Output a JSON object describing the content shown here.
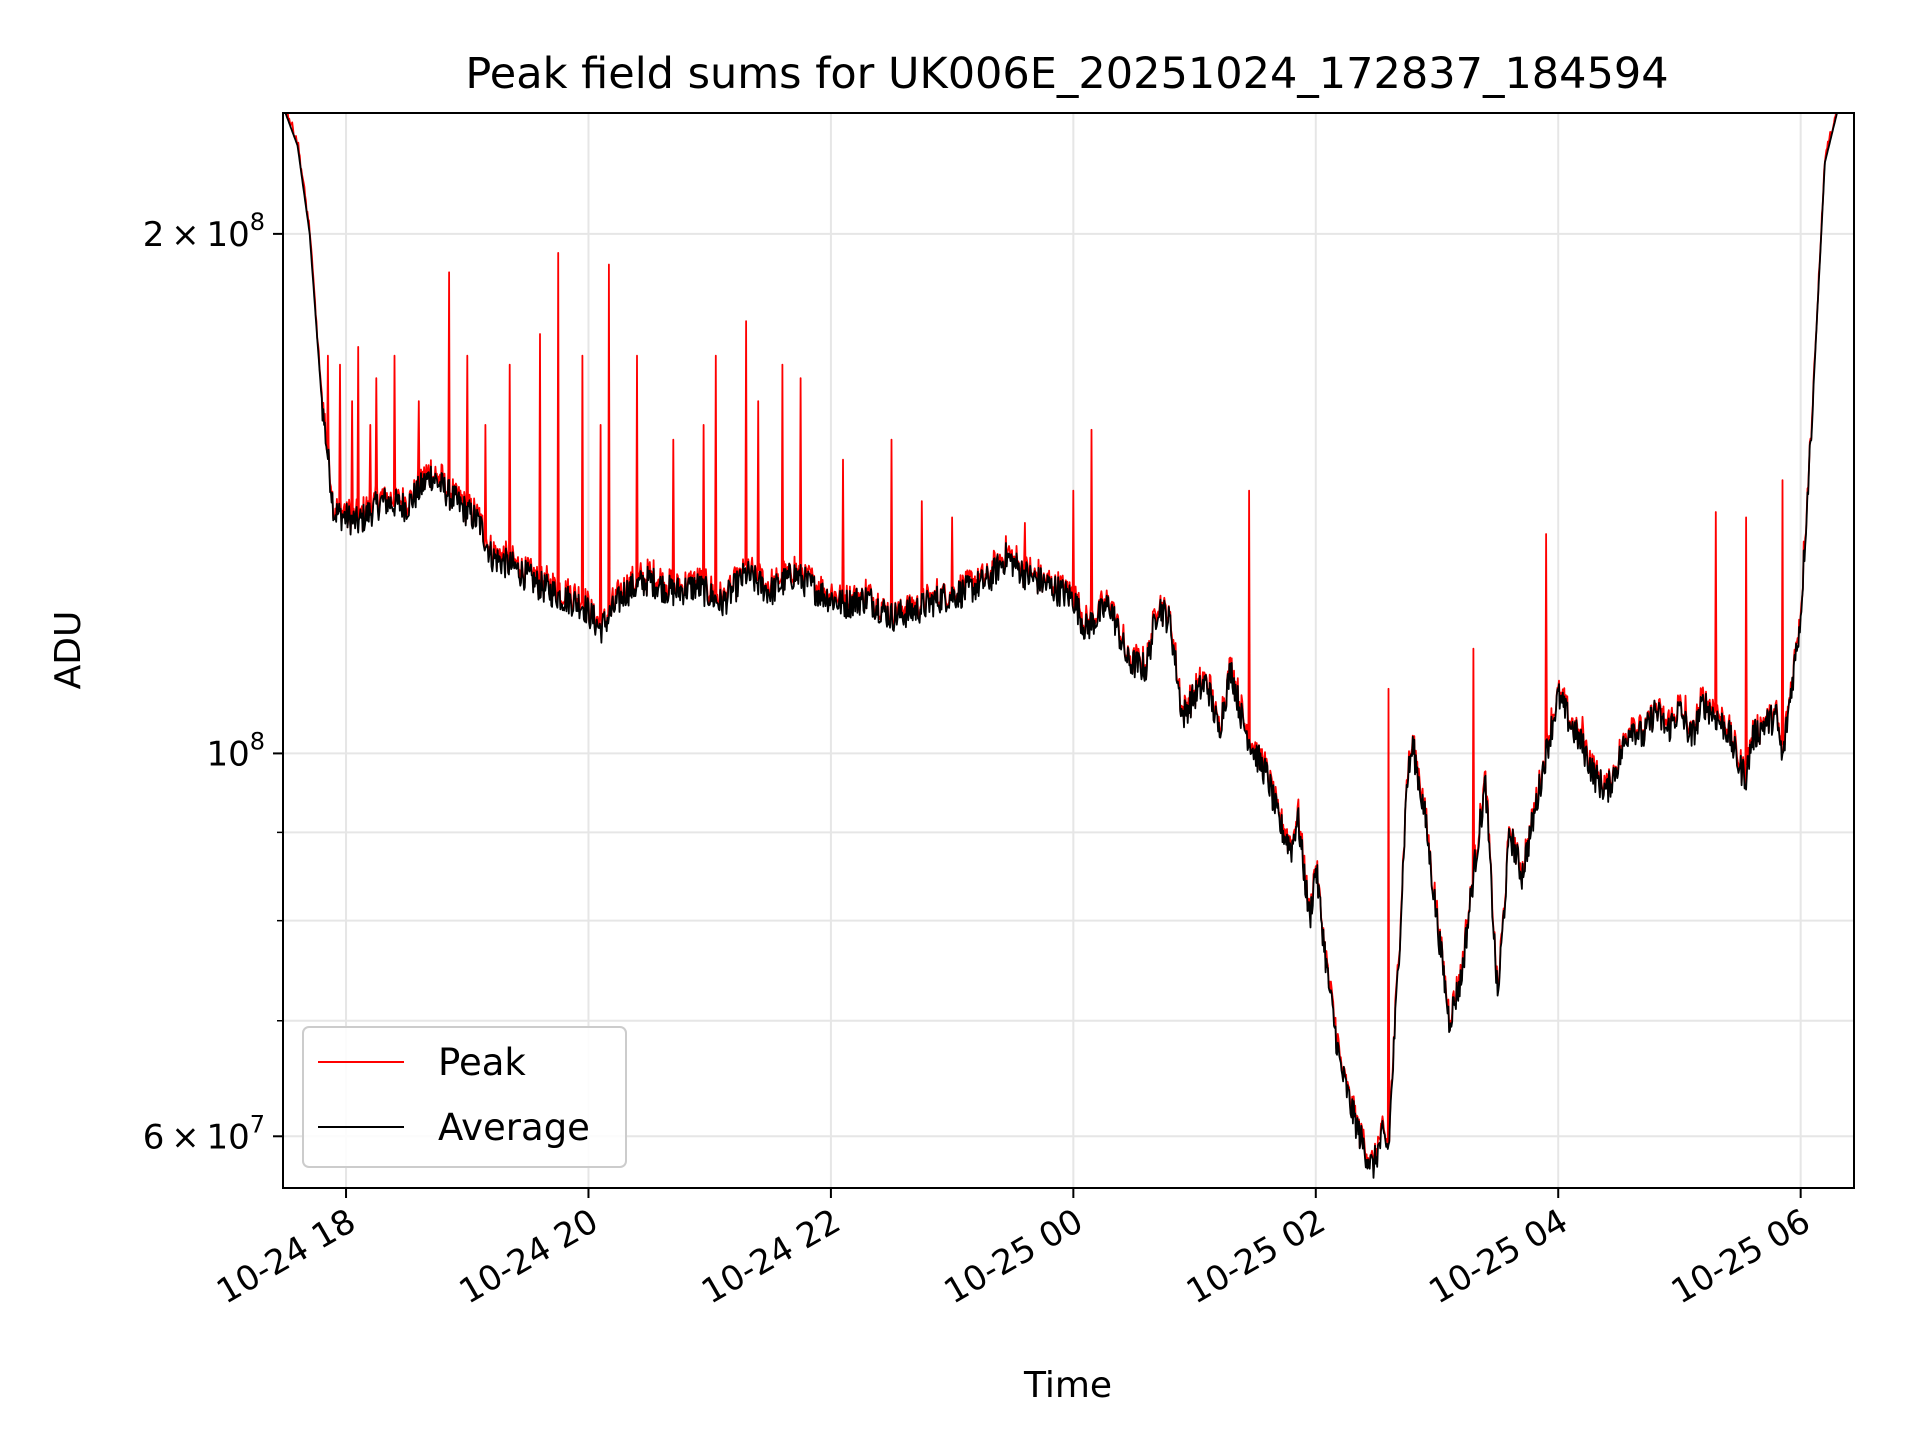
{
  "chart_data": {
    "type": "line",
    "title": "Peak field sums for UK006E_20251024_172837_184594",
    "xlabel": "Time",
    "ylabel": "ADU",
    "yscale": "log",
    "ylim": [
      56000000,
      235000000
    ],
    "xlim_hours": [
      17.48,
      30.44
    ],
    "x_ticks": [
      {
        "hour": 18,
        "label": "10-24 18"
      },
      {
        "hour": 20,
        "label": "10-24 20"
      },
      {
        "hour": 22,
        "label": "10-24 22"
      },
      {
        "hour": 24,
        "label": "10-25 00"
      },
      {
        "hour": 26,
        "label": "10-25 02"
      },
      {
        "hour": 28,
        "label": "10-25 04"
      },
      {
        "hour": 30,
        "label": "10-25 06"
      }
    ],
    "y_major_ticks": [
      {
        "value": 60000000,
        "mantissa": "6",
        "exponent": "7"
      },
      {
        "value": 100000000,
        "mantissa": "",
        "exponent": "8"
      },
      {
        "value": 200000000,
        "mantissa": "2",
        "exponent": "8"
      }
    ],
    "y_minor_ticks": [
      70000000,
      80000000,
      90000000
    ],
    "legend": {
      "position": "lower-left",
      "entries": [
        "Peak",
        "Average"
      ]
    },
    "colors": {
      "Peak": "#ff0000",
      "Average": "#000000",
      "grid": "#e6e6e6"
    },
    "series": [
      {
        "name": "Average",
        "points": [
          [
            17.5,
            235000000
          ],
          [
            17.6,
            225000000
          ],
          [
            17.7,
            200000000
          ],
          [
            17.8,
            160000000
          ],
          [
            17.9,
            138000000
          ],
          [
            18.1,
            136000000
          ],
          [
            18.3,
            140000000
          ],
          [
            18.5,
            139000000
          ],
          [
            18.7,
            145000000
          ],
          [
            18.9,
            140000000
          ],
          [
            19.1,
            136000000
          ],
          [
            19.2,
            130000000
          ],
          [
            19.4,
            128000000
          ],
          [
            19.6,
            125000000
          ],
          [
            19.8,
            123000000
          ],
          [
            19.95,
            122000000
          ],
          [
            20.1,
            118000000
          ],
          [
            20.3,
            124000000
          ],
          [
            20.5,
            126000000
          ],
          [
            20.7,
            124000000
          ],
          [
            20.9,
            125000000
          ],
          [
            21.1,
            122000000
          ],
          [
            21.3,
            127000000
          ],
          [
            21.5,
            124000000
          ],
          [
            21.7,
            127000000
          ],
          [
            21.9,
            124000000
          ],
          [
            22.1,
            122000000
          ],
          [
            22.3,
            123000000
          ],
          [
            22.5,
            120000000
          ],
          [
            22.7,
            121000000
          ],
          [
            22.9,
            123000000
          ],
          [
            23.1,
            124000000
          ],
          [
            23.3,
            126000000
          ],
          [
            23.45,
            130000000
          ],
          [
            23.6,
            127000000
          ],
          [
            23.8,
            125000000
          ],
          [
            24.0,
            123000000
          ],
          [
            24.1,
            118000000
          ],
          [
            24.3,
            122000000
          ],
          [
            24.45,
            113000000
          ],
          [
            24.6,
            112000000
          ],
          [
            24.7,
            122000000
          ],
          [
            24.8,
            119000000
          ],
          [
            24.9,
            105000000
          ],
          [
            25.0,
            108000000
          ],
          [
            25.1,
            110000000
          ],
          [
            25.2,
            103000000
          ],
          [
            25.3,
            112000000
          ],
          [
            25.4,
            104000000
          ],
          [
            25.5,
            100000000
          ],
          [
            25.6,
            97000000
          ],
          [
            25.7,
            91000000
          ],
          [
            25.8,
            88000000
          ],
          [
            25.85,
            92000000
          ],
          [
            25.95,
            80000000
          ],
          [
            26.0,
            86000000
          ],
          [
            26.1,
            74000000
          ],
          [
            26.2,
            66000000
          ],
          [
            26.3,
            62000000
          ],
          [
            26.4,
            59000000
          ],
          [
            26.47,
            57500000
          ],
          [
            26.55,
            60000000
          ],
          [
            26.6,
            59000000
          ],
          [
            26.7,
            80000000
          ],
          [
            26.75,
            96000000
          ],
          [
            26.8,
            101000000
          ],
          [
            26.9,
            92000000
          ],
          [
            27.0,
            80000000
          ],
          [
            27.05,
            75000000
          ],
          [
            27.1,
            70000000
          ],
          [
            27.2,
            74000000
          ],
          [
            27.3,
            85000000
          ],
          [
            27.4,
            96000000
          ],
          [
            27.5,
            72000000
          ],
          [
            27.6,
            90000000
          ],
          [
            27.7,
            85000000
          ],
          [
            27.8,
            92000000
          ],
          [
            27.9,
            100000000
          ],
          [
            28.0,
            108000000
          ],
          [
            28.1,
            104000000
          ],
          [
            28.2,
            101000000
          ],
          [
            28.3,
            97000000
          ],
          [
            28.4,
            95000000
          ],
          [
            28.5,
            99000000
          ],
          [
            28.6,
            104000000
          ],
          [
            28.7,
            102000000
          ],
          [
            28.8,
            106000000
          ],
          [
            28.9,
            103000000
          ],
          [
            29.0,
            106000000
          ],
          [
            29.1,
            102000000
          ],
          [
            29.2,
            107000000
          ],
          [
            29.3,
            105000000
          ],
          [
            29.4,
            103000000
          ],
          [
            29.5,
            98000000
          ],
          [
            29.55,
            97000000
          ],
          [
            29.6,
            102000000
          ],
          [
            29.7,
            104000000
          ],
          [
            29.8,
            105000000
          ],
          [
            29.85,
            99000000
          ],
          [
            29.9,
            106000000
          ],
          [
            30.0,
            120000000
          ],
          [
            30.1,
            160000000
          ],
          [
            30.2,
            220000000
          ],
          [
            30.3,
            235000000
          ],
          [
            30.44,
            235000000
          ]
        ]
      },
      {
        "name": "Peak",
        "spikes": [
          [
            17.7,
            198000000
          ],
          [
            17.85,
            170000000
          ],
          [
            17.95,
            168000000
          ],
          [
            18.05,
            160000000
          ],
          [
            18.1,
            172000000
          ],
          [
            18.2,
            155000000
          ],
          [
            18.25,
            165000000
          ],
          [
            18.4,
            170000000
          ],
          [
            18.6,
            160000000
          ],
          [
            18.85,
            190000000
          ],
          [
            19.0,
            170000000
          ],
          [
            19.15,
            155000000
          ],
          [
            19.35,
            168000000
          ],
          [
            19.6,
            175000000
          ],
          [
            19.75,
            195000000
          ],
          [
            19.95,
            170000000
          ],
          [
            20.1,
            155000000
          ],
          [
            20.17,
            192000000
          ],
          [
            20.4,
            170000000
          ],
          [
            20.7,
            152000000
          ],
          [
            20.95,
            155000000
          ],
          [
            21.05,
            170000000
          ],
          [
            21.3,
            178000000
          ],
          [
            21.4,
            160000000
          ],
          [
            21.6,
            168000000
          ],
          [
            21.75,
            165000000
          ],
          [
            22.1,
            148000000
          ],
          [
            22.5,
            152000000
          ],
          [
            22.75,
            140000000
          ],
          [
            23.0,
            137000000
          ],
          [
            23.6,
            136000000
          ],
          [
            24.0,
            142000000
          ],
          [
            24.15,
            154000000
          ],
          [
            25.45,
            142000000
          ],
          [
            26.6,
            109000000
          ],
          [
            27.3,
            115000000
          ],
          [
            27.9,
            134000000
          ],
          [
            28.2,
            105000000
          ],
          [
            29.05,
            108000000
          ],
          [
            29.3,
            138000000
          ],
          [
            29.55,
            137000000
          ],
          [
            29.85,
            144000000
          ]
        ]
      }
    ]
  }
}
